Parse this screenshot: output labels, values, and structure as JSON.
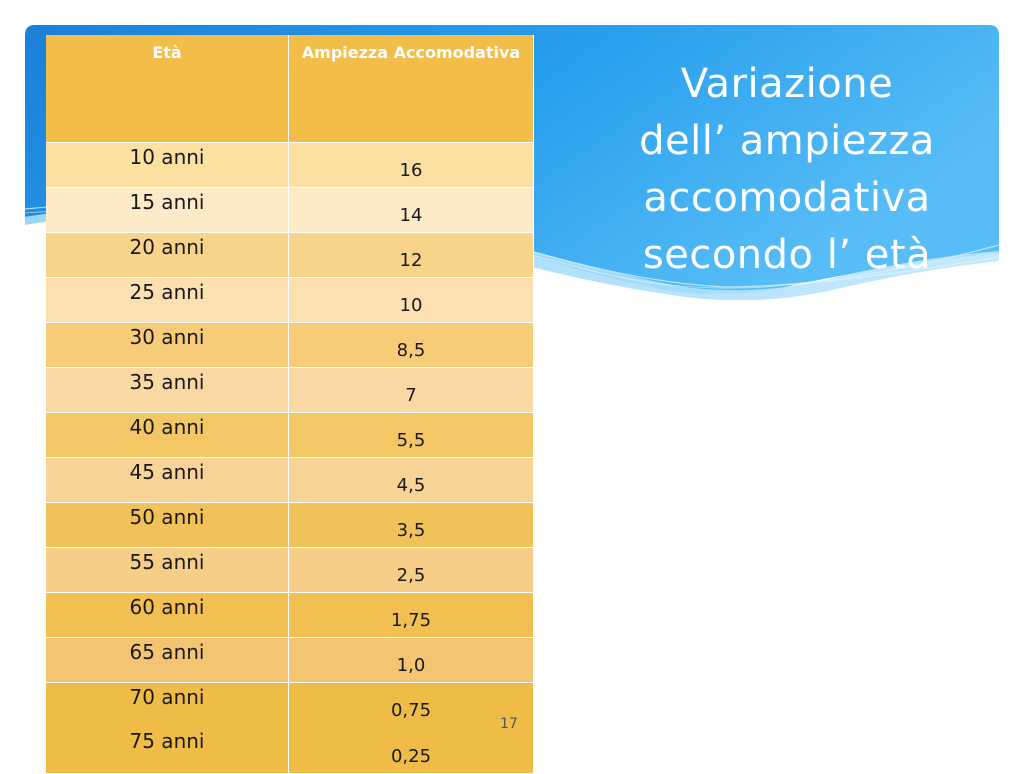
{
  "slide": {
    "title_lines": [
      "Variazione",
      "dell’ ampiezza",
      "accomodativa",
      "secondo l’ età"
    ],
    "page_number": "17"
  },
  "table": {
    "headers": [
      "Età",
      "Ampiezza Accomodativa"
    ],
    "rows": [
      {
        "age": "10 anni",
        "amplitude": "16"
      },
      {
        "age": "15 anni",
        "amplitude": "14"
      },
      {
        "age": "20 anni",
        "amplitude": "12"
      },
      {
        "age": "25 anni",
        "amplitude": "10"
      },
      {
        "age": "30 anni",
        "amplitude": "8,5"
      },
      {
        "age": "35 anni",
        "amplitude": "7"
      },
      {
        "age": "40 anni",
        "amplitude": "5,5"
      },
      {
        "age": "45 anni",
        "amplitude": "4,5"
      },
      {
        "age": "50 anni",
        "amplitude": "3,5"
      },
      {
        "age": "55 anni",
        "amplitude": "2,5"
      },
      {
        "age": "60 anni",
        "amplitude": "1,75"
      },
      {
        "age": "65 anni",
        "amplitude": "1,0"
      },
      {
        "age": "70 anni",
        "amplitude": "0,75"
      },
      {
        "age": "75 anni",
        "amplitude": "0,25"
      }
    ]
  },
  "colors": {
    "banner_blue": "#1e90e8",
    "banner_light": "#7cc8f6",
    "header_orange": "#f2bd48",
    "row_colors": [
      "#fbe0a2",
      "#fdebc7",
      "#f8d38a",
      "#fce0b1",
      "#f6cc78",
      "#fad8a4",
      "#f4c766",
      "#f8d396",
      "#f2c25a",
      "#f6ce88",
      "#f1bf52",
      "#f3c572",
      "#f0bc48",
      "#f0bc48"
    ]
  }
}
